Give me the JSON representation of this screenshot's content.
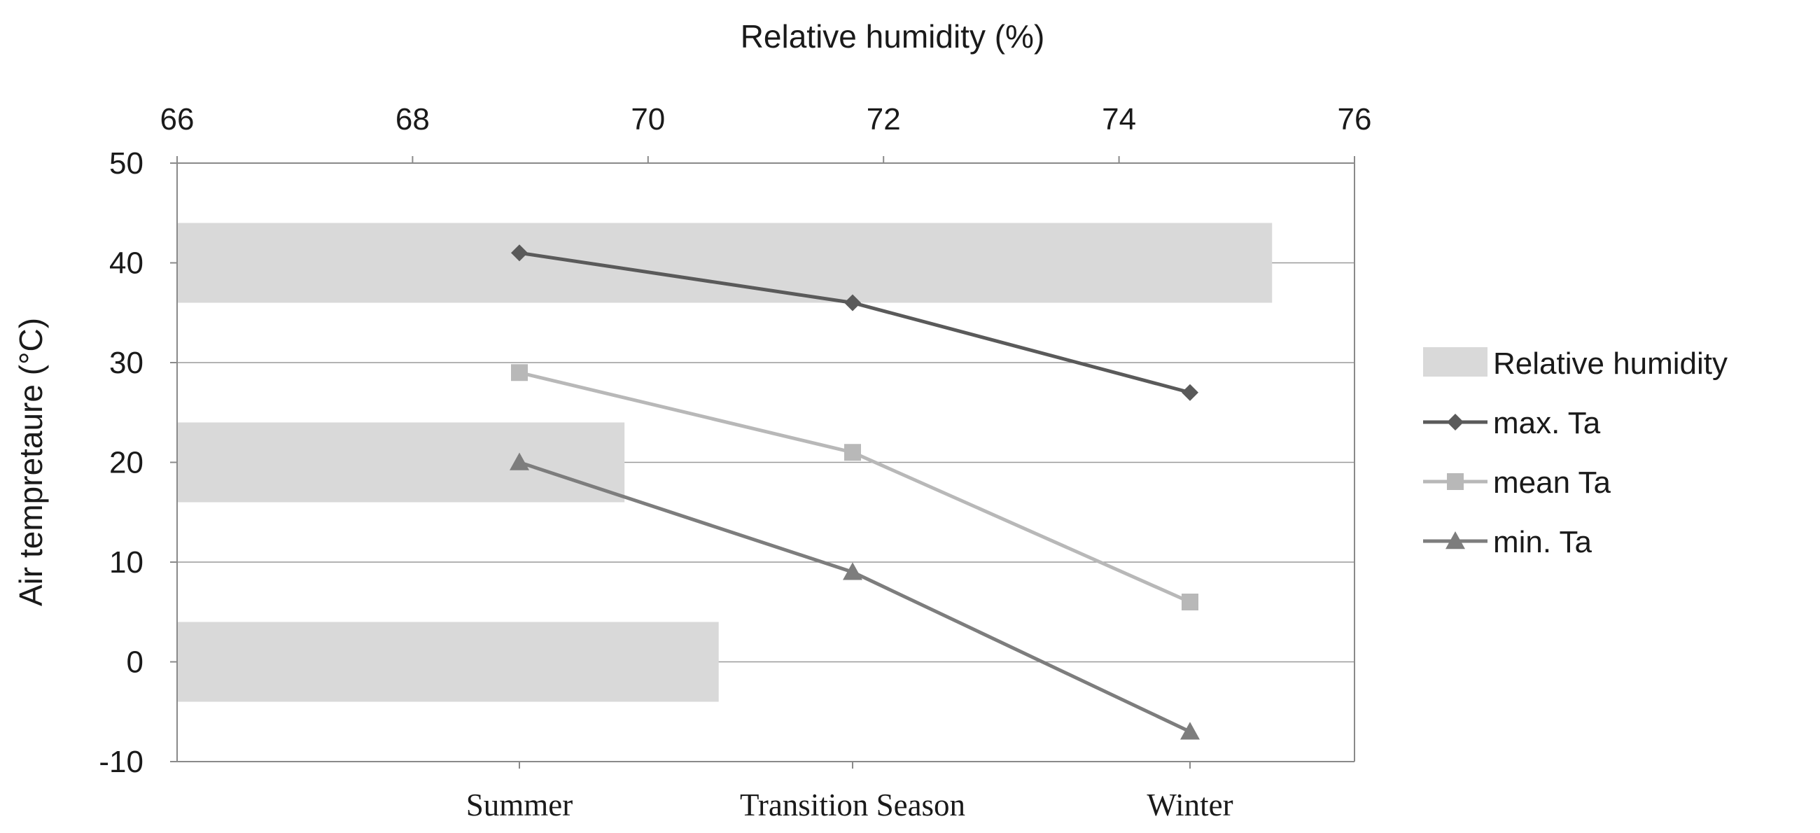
{
  "chart_data": {
    "type": "bar",
    "categories": [
      "Summer",
      "Transition Season",
      "Winter"
    ],
    "bar_series": {
      "name": "Relative humidity",
      "axis": "top",
      "values": [
        75.3,
        69.8,
        70.6
      ],
      "band_centers_ta": [
        40,
        20,
        0
      ]
    },
    "line_series": [
      {
        "name": "max. Ta",
        "marker": "diamond",
        "color": "#5a5a5a",
        "values": [
          41,
          36,
          27
        ]
      },
      {
        "name": "mean Ta",
        "marker": "square",
        "color": "#b8b8b8",
        "values": [
          29,
          21,
          6
        ]
      },
      {
        "name": "min. Ta",
        "marker": "triangle",
        "color": "#7d7d7d",
        "values": [
          20,
          9,
          -7
        ]
      }
    ],
    "bar_color": "#d9d9d9",
    "top_axis": {
      "label": "Relative humidity (%)",
      "range": [
        66,
        76
      ],
      "ticks": [
        "66",
        "68",
        "70",
        "72",
        "74",
        "76"
      ]
    },
    "left_axis": {
      "label": "Air tempretaure (°C)",
      "range": [
        -10,
        50
      ],
      "ticks": [
        "50",
        "40",
        "30",
        "20",
        "10",
        "0",
        "-10"
      ]
    },
    "grid": "horizontal",
    "legend_position": "right",
    "legend": [
      {
        "name": "Relative humidity",
        "kind": "bar"
      },
      {
        "name": "max. Ta",
        "kind": "line",
        "marker": "diamond"
      },
      {
        "name": "mean Ta",
        "kind": "line",
        "marker": "square"
      },
      {
        "name": "min. Ta",
        "kind": "line",
        "marker": "triangle"
      }
    ]
  }
}
